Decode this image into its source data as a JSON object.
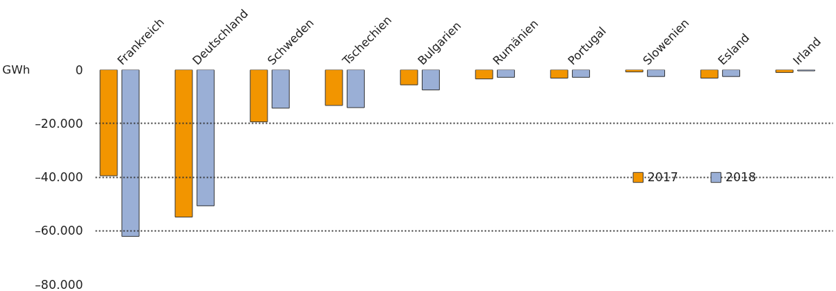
{
  "chart_data": {
    "type": "bar",
    "ylabel": "GWh",
    "categories": [
      "Frankreich",
      "Deutschland",
      "Schweden",
      "Tschechien",
      "Bulgarien",
      "Rumänien",
      "Portugal",
      "Slowenien",
      "Esland",
      "Irland"
    ],
    "series": [
      {
        "name": "2017",
        "color": "#f29500",
        "values": [
          -39500,
          -54900,
          -19400,
          -13300,
          -5600,
          -3400,
          -3100,
          -800,
          -3100,
          -1000
        ]
      },
      {
        "name": "2018",
        "color": "#9aafd6",
        "values": [
          -62100,
          -50700,
          -14300,
          -14100,
          -7500,
          -2800,
          -2800,
          -2500,
          -2500,
          -400
        ]
      }
    ],
    "ylim": [
      -80000,
      0
    ],
    "yticks": [
      {
        "value": -80000,
        "label": "–80.000"
      },
      {
        "value": -60000,
        "label": "–60.000"
      },
      {
        "value": -40000,
        "label": "–40.000"
      },
      {
        "value": -20000,
        "label": "–20.000"
      },
      0
    ],
    "grid": "y",
    "legend": "right"
  }
}
